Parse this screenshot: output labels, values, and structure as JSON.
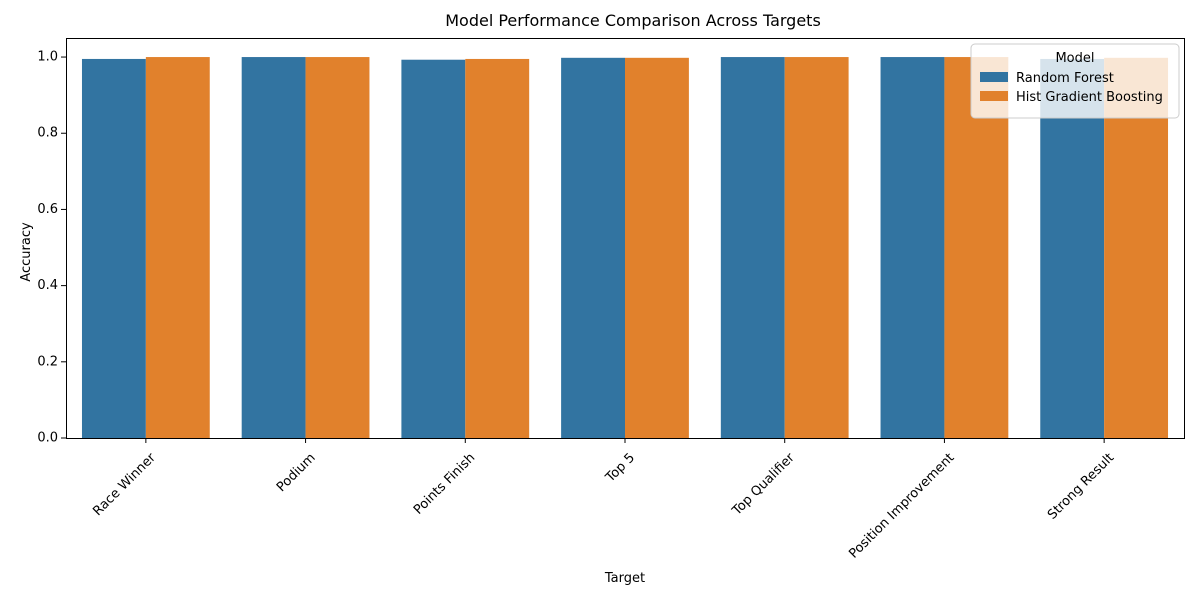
{
  "chart_data": {
    "type": "bar",
    "title": "Model Performance Comparison Across Targets",
    "xlabel": "Target",
    "ylabel": "Accuracy",
    "categories": [
      "Race Winner",
      "Podium",
      "Points Finish",
      "Top 5",
      "Top Qualifier",
      "Position Improvement",
      "Strong Result"
    ],
    "series": [
      {
        "name": "Random Forest",
        "color": "#3274a1",
        "values": [
          0.995,
          1.0,
          0.993,
          0.998,
          1.0,
          1.0,
          0.995
        ]
      },
      {
        "name": "Hist Gradient Boosting",
        "color": "#e1812c",
        "values": [
          1.0,
          1.0,
          0.995,
          0.998,
          1.0,
          1.0,
          0.998
        ]
      }
    ],
    "ylim": [
      0,
      1.05
    ],
    "yticks": [
      "0.0",
      "0.2",
      "0.4",
      "0.6",
      "0.8",
      "1.0"
    ],
    "legend": {
      "title": "Model",
      "placement": "top-right"
    },
    "grid": false
  }
}
